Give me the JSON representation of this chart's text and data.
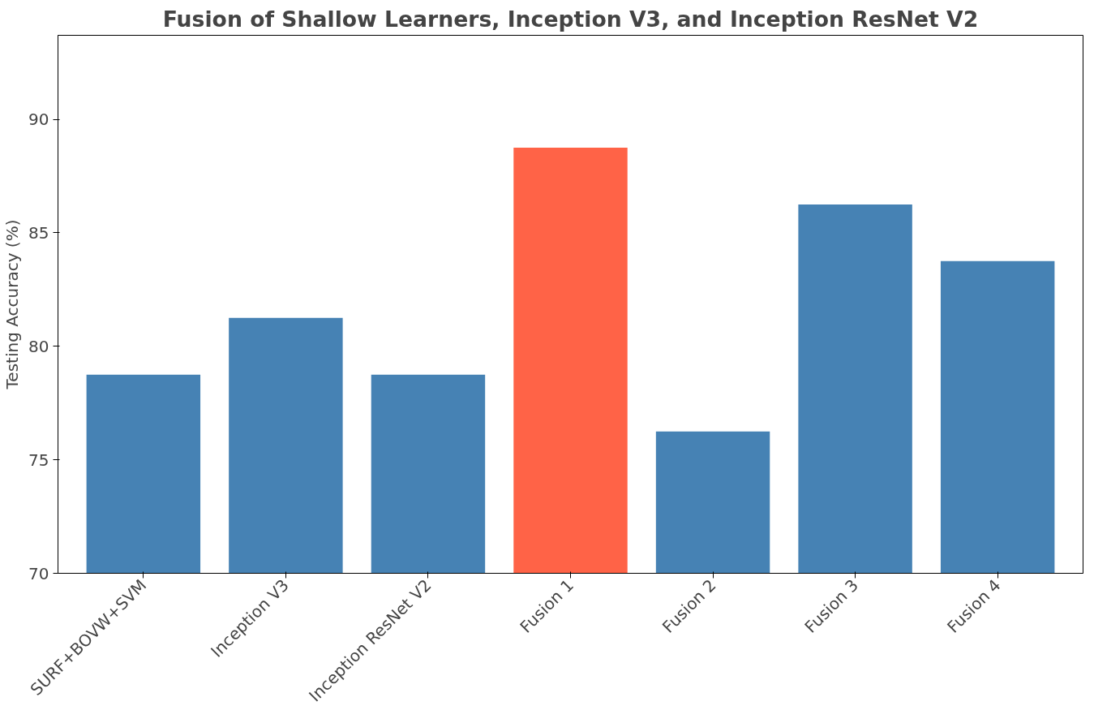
{
  "chart_data": {
    "type": "bar",
    "title": "Fusion of Shallow Learners, Inception V3, and Inception ResNet V2",
    "ylabel": "Testing Accuracy (%)",
    "categories": [
      "SURF+BOVW+SVM",
      "Inception V3",
      "Inception ResNet V2",
      "Fusion 1",
      "Fusion 2",
      "Fusion 3",
      "Fusion 4"
    ],
    "values": [
      78.75,
      81.25,
      78.75,
      88.75,
      76.25,
      86.25,
      83.75
    ],
    "colors": [
      "#4682b4",
      "#4682b4",
      "#4682b4",
      "#ff6347",
      "#4682b4",
      "#4682b4",
      "#4682b4"
    ],
    "ylim": [
      70,
      93.7
    ],
    "yticks": [
      70,
      75,
      80,
      85,
      90
    ],
    "grid": false
  }
}
